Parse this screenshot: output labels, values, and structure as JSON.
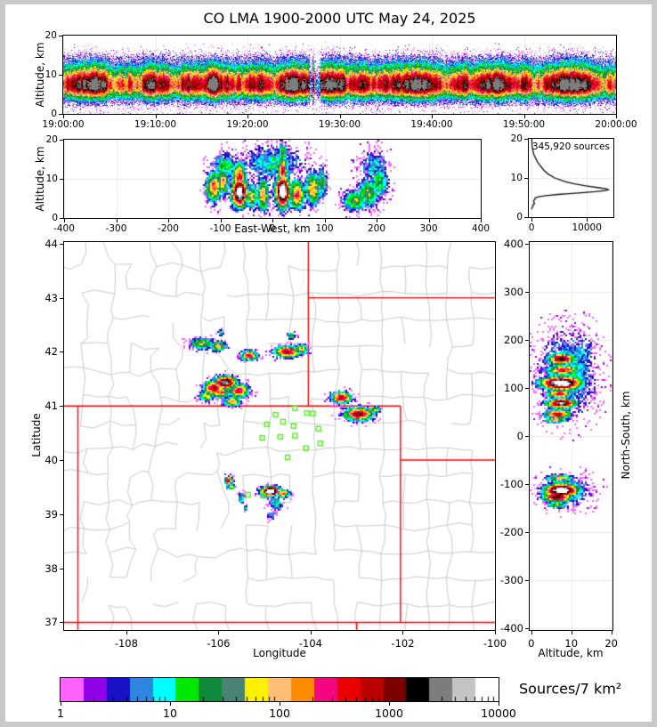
{
  "chart_data": {
    "type": "heatmap",
    "title": "CO LMA 1900-2000 UTC May 24, 2025",
    "colors": {
      "background": "#ffffff",
      "frame": "#c9c9c9",
      "axis": "#000000",
      "grid": "#e8e8e8",
      "state_border": "#ff0000",
      "county_border": "#c9c9c9",
      "station": "#55ee22",
      "histogram_line": "#111111"
    },
    "panels": {
      "time_height": {
        "ylabel": "Altitude, km",
        "yticks": [
          0,
          10,
          20
        ],
        "ylim": [
          0,
          20
        ],
        "xtick_seconds": [
          0,
          600,
          1200,
          1800,
          2400,
          3000,
          3600
        ],
        "xtick_labels": [
          "19:00:00",
          "19:10:00",
          "19:20:00",
          "19:30:00",
          "19:40:00",
          "19:50:00",
          "20:00:00"
        ],
        "density_profile": {
          "core_alt": 7.3,
          "core_log10": 2.55,
          "sigma_up": 3.0,
          "sigma_down": 1.95,
          "broad_alt": 9.0,
          "broad_log10": 0.5,
          "broad_sigma": 5.5,
          "gap_minutes": [
            [
              26.7,
              27.0
            ],
            [
              27.2,
              27.9
            ]
          ]
        }
      },
      "east_west": {
        "xlabel": "East-West, km",
        "ylabel": "Altitude, km",
        "xticks": [
          -400,
          -300,
          -200,
          -100,
          0,
          100,
          200,
          300,
          400
        ],
        "yticks": [
          0,
          10,
          20
        ],
        "xlim": [
          -400,
          400
        ],
        "ylim": [
          0,
          20
        ],
        "blobs": [
          [
            -112,
            8,
            2.4,
            10,
            2.6
          ],
          [
            -95,
            9.5,
            2.2,
            8,
            2.2
          ],
          [
            -63,
            6.5,
            4.3,
            10,
            2.4
          ],
          [
            -63,
            10.5,
            2.6,
            9,
            2.6
          ],
          [
            -40,
            5.5,
            1.9,
            7,
            2.2
          ],
          [
            -18,
            6,
            2.1,
            8,
            2.8
          ],
          [
            20,
            6.8,
            4.6,
            9,
            2.6
          ],
          [
            20,
            12,
            2.6,
            7,
            2.6
          ],
          [
            20,
            16.5,
            1.5,
            6,
            2
          ],
          [
            48,
            6,
            2.5,
            10,
            2.4
          ],
          [
            78,
            7.5,
            2.1,
            10,
            2.8
          ],
          [
            95,
            9,
            1.5,
            7,
            2.5
          ],
          [
            -90,
            13,
            1.2,
            18,
            2.5
          ],
          [
            0,
            14,
            1.0,
            40,
            3
          ],
          [
            160,
            4.5,
            1.6,
            16,
            1.8
          ],
          [
            185,
            6.5,
            1.6,
            14,
            2.5
          ],
          [
            205,
            9.5,
            1.3,
            12,
            3
          ],
          [
            195,
            13,
            0.9,
            18,
            3
          ]
        ]
      },
      "source_histogram": {
        "annotation": "345,920 sources",
        "xticks": [
          0,
          10000
        ],
        "xlim": [
          -500,
          14800
        ],
        "ylim": [
          0,
          20
        ],
        "profile": [
          [
            20,
            30
          ],
          [
            18,
            120
          ],
          [
            16,
            400
          ],
          [
            14,
            1100
          ],
          [
            12,
            2200
          ],
          [
            11,
            3000
          ],
          [
            10,
            4200
          ],
          [
            9,
            6200
          ],
          [
            8.5,
            7800
          ],
          [
            8,
            9800
          ],
          [
            7.5,
            12200
          ],
          [
            7.2,
            13600
          ],
          [
            7,
            13900
          ],
          [
            6.8,
            13400
          ],
          [
            6.5,
            11500
          ],
          [
            6.2,
            9000
          ],
          [
            6,
            6800
          ],
          [
            5.8,
            4800
          ],
          [
            5.5,
            2600
          ],
          [
            5.2,
            1300
          ],
          [
            5,
            800
          ],
          [
            4.8,
            600
          ],
          [
            4.5,
            600
          ],
          [
            4.3,
            420
          ],
          [
            4,
            380
          ],
          [
            3.8,
            400
          ],
          [
            3.6,
            520
          ],
          [
            3.4,
            520
          ],
          [
            3.2,
            300
          ],
          [
            3,
            260
          ],
          [
            2.8,
            260
          ],
          [
            2.6,
            140
          ],
          [
            2.4,
            120
          ],
          [
            2.2,
            60
          ],
          [
            2,
            0
          ]
        ]
      },
      "map": {
        "xlabel": "Longitude",
        "ylabel": "Latitude",
        "xticks": [
          -108,
          -106,
          -104,
          -102,
          -100
        ],
        "yticks": [
          37,
          38,
          39,
          40,
          41,
          42,
          43,
          44
        ],
        "xlim": [
          -109.35,
          -100.0
        ],
        "ylim": [
          36.86,
          44.03
        ],
        "counties": {
          "seed": 77,
          "cols": 19,
          "rows": 15
        },
        "state_borders": [
          [
            [
              -109.05,
              41.0
            ],
            [
              -109.05,
              36.86
            ]
          ],
          [
            [
              -109.35,
              41.0
            ],
            [
              -102.05,
              41.0
            ]
          ],
          [
            [
              -104.05,
              44.03
            ],
            [
              -104.05,
              41.0
            ]
          ],
          [
            [
              -104.05,
              43.0
            ],
            [
              -100.0,
              43.0
            ]
          ],
          [
            [
              -102.05,
              41.0
            ],
            [
              -102.05,
              37.0
            ]
          ],
          [
            [
              -102.05,
              40.0
            ],
            [
              -100.0,
              40.0
            ]
          ],
          [
            [
              -109.35,
              37.0
            ],
            [
              -100.0,
              37.0
            ]
          ],
          [
            [
              -103.0,
              37.0
            ],
            [
              -103.0,
              36.86
            ]
          ]
        ],
        "stations": [
          [
            -104.34,
            40.96
          ],
          [
            -104.76,
            40.84
          ],
          [
            -104.08,
            40.87
          ],
          [
            -103.95,
            40.86
          ],
          [
            -104.95,
            40.66
          ],
          [
            -104.6,
            40.71
          ],
          [
            -104.37,
            40.63
          ],
          [
            -103.83,
            40.58
          ],
          [
            -105.05,
            40.41
          ],
          [
            -104.66,
            40.43
          ],
          [
            -104.34,
            40.45
          ],
          [
            -103.79,
            40.31
          ],
          [
            -104.1,
            40.22
          ],
          [
            -104.5,
            40.05
          ],
          [
            -105.03,
            39.34
          ],
          [
            -105.36,
            39.36
          ]
        ],
        "clusters": [
          [
            -106.35,
            42.15,
            1.7,
            0.18,
            0.07
          ],
          [
            -106.0,
            42.1,
            2.1,
            0.12,
            0.06
          ],
          [
            -105.95,
            42.35,
            1.3,
            0.05,
            0.04
          ],
          [
            -105.33,
            41.93,
            2.7,
            0.12,
            0.06
          ],
          [
            -104.5,
            42.0,
            3.0,
            0.18,
            0.07
          ],
          [
            -104.2,
            42.05,
            2.0,
            0.1,
            0.06
          ],
          [
            -104.42,
            42.3,
            1.5,
            0.06,
            0.04
          ],
          [
            -106.1,
            41.33,
            3.0,
            0.14,
            0.09
          ],
          [
            -105.85,
            41.43,
            3.7,
            0.16,
            0.08
          ],
          [
            -105.55,
            41.28,
            2.7,
            0.14,
            0.08
          ],
          [
            -105.7,
            41.08,
            2.3,
            0.12,
            0.06
          ],
          [
            -106.25,
            41.18,
            1.9,
            0.1,
            0.06
          ],
          [
            -105.95,
            41.25,
            2.5,
            0.12,
            0.07
          ],
          [
            -103.33,
            41.15,
            2.9,
            0.14,
            0.07
          ],
          [
            -102.95,
            40.85,
            3.1,
            0.2,
            0.08
          ],
          [
            -102.6,
            40.92,
            1.7,
            0.08,
            0.05
          ],
          [
            -105.78,
            39.62,
            2.9,
            0.06,
            0.05
          ],
          [
            -105.72,
            39.5,
            1.8,
            0.06,
            0.04
          ],
          [
            -105.5,
            39.3,
            1.6,
            0.04,
            0.06
          ],
          [
            -105.42,
            39.12,
            1.4,
            0.03,
            0.04
          ],
          [
            -104.87,
            39.42,
            4.6,
            0.13,
            0.06
          ],
          [
            -104.6,
            39.38,
            2.4,
            0.1,
            0.05
          ],
          [
            -104.75,
            39.2,
            1.0,
            0.12,
            0.1
          ],
          [
            -104.85,
            39.0,
            0.7,
            0.08,
            0.08
          ]
        ]
      },
      "north_south": {
        "xlabel": "Altitude, km",
        "ylabel": "North-South, km",
        "xticks": [
          0,
          10,
          20
        ],
        "yticks": [
          400,
          300,
          200,
          100,
          0,
          -100,
          -200,
          -300,
          -400
        ],
        "xlim": [
          -0.4,
          20.3
        ],
        "ylim": [
          -403.7,
          403.7
        ],
        "blobs": [
          [
            7.5,
            160,
            3.2,
            2.2,
            8
          ],
          [
            8,
            137,
            2.6,
            2.6,
            7
          ],
          [
            7.5,
            110,
            4.5,
            3.2,
            9
          ],
          [
            7,
            88,
            2.6,
            2.2,
            6
          ],
          [
            7.5,
            68,
            3.7,
            2.4,
            7
          ],
          [
            6.5,
            45,
            2.9,
            2.2,
            6
          ],
          [
            6,
            33,
            2.2,
            1.8,
            4
          ],
          [
            9,
            130,
            1.1,
            4.5,
            55
          ],
          [
            12,
            170,
            0.8,
            3,
            30
          ],
          [
            7,
            -88,
            2.1,
            2.2,
            5
          ],
          [
            7.5,
            -113,
            4.4,
            2.8,
            9
          ],
          [
            6.5,
            -127,
            3.3,
            2.4,
            7
          ],
          [
            6.5,
            -143,
            1.7,
            1.8,
            5
          ],
          [
            9,
            -115,
            1.0,
            4,
            22
          ]
        ]
      }
    },
    "colorbar": {
      "label": "Sources/7 km²",
      "tick_labels": [
        "1",
        "10",
        "100",
        "1000",
        "10000"
      ],
      "log_range": [
        0,
        4
      ],
      "palette": [
        "#ff63ff",
        "#9000e8",
        "#1a10c8",
        "#2e86e0",
        "#00ffff",
        "#00e800",
        "#0f8a3c",
        "#4a8273",
        "#ffef00",
        "#ffbe78",
        "#ff8c00",
        "#f2077e",
        "#ea0000",
        "#bc0000",
        "#7c0000",
        "#000000",
        "#7d7d7d",
        "#c4c4c4",
        "#ffffff"
      ]
    }
  }
}
